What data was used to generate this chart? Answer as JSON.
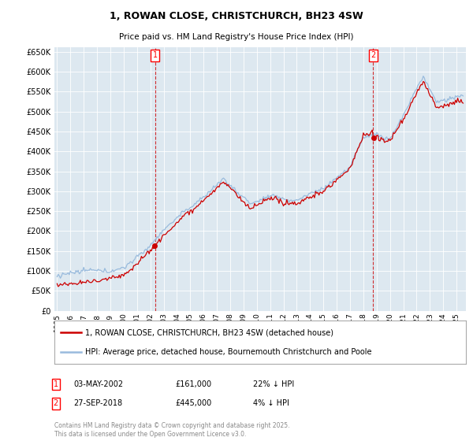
{
  "title": "1, ROWAN CLOSE, CHRISTCHURCH, BH23 4SW",
  "subtitle": "Price paid vs. HM Land Registry's House Price Index (HPI)",
  "sale1_date": "03-MAY-2002",
  "sale1_price": 161000,
  "sale1_label": "22% ↓ HPI",
  "sale2_date": "27-SEP-2018",
  "sale2_price": 445000,
  "sale2_label": "4% ↓ HPI",
  "legend_line1": "1, ROWAN CLOSE, CHRISTCHURCH, BH23 4SW (detached house)",
  "legend_line2": "HPI: Average price, detached house, Bournemouth Christchurch and Poole",
  "footer": "Contains HM Land Registry data © Crown copyright and database right 2025.\nThis data is licensed under the Open Government Licence v3.0.",
  "price_line_color": "#cc0000",
  "hpi_line_color": "#99bbdd",
  "plot_bg_color": "#dde8f0",
  "marker1_x": 2002.37,
  "marker2_x": 2018.74,
  "ylim_min": 0,
  "ylim_max": 660000,
  "xlim_min": 1994.8,
  "xlim_max": 2025.7
}
